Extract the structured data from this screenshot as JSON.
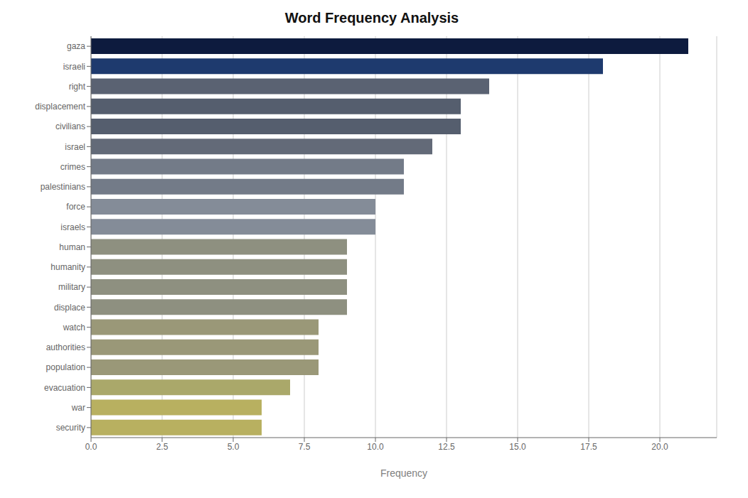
{
  "chart_data": {
    "type": "bar",
    "title": "Word Frequency Analysis",
    "xlabel": "Frequency",
    "orientation": "horizontal",
    "categories": [
      "gaza",
      "israeli",
      "right",
      "displacement",
      "civilians",
      "israel",
      "crimes",
      "palestinians",
      "force",
      "israels",
      "human",
      "humanity",
      "military",
      "displace",
      "watch",
      "authorities",
      "population",
      "evacuation",
      "war",
      "security"
    ],
    "values": [
      21,
      18,
      14,
      13,
      13,
      12,
      11,
      11,
      10,
      10,
      9,
      9,
      9,
      9,
      8,
      8,
      8,
      7,
      6,
      6
    ],
    "colors": [
      "#0d1b3e",
      "#1e3a6e",
      "#5a6272",
      "#555e6e",
      "#555e6e",
      "#636a78",
      "#737b88",
      "#737b88",
      "#848c98",
      "#848c98",
      "#8e9080",
      "#8e9080",
      "#8e9080",
      "#8e9080",
      "#9a9878",
      "#9a9878",
      "#9a9878",
      "#aaa86a",
      "#b8b060",
      "#b8b060"
    ],
    "xlim": [
      0,
      22
    ],
    "xticks": [
      {
        "value": 0,
        "label": "0.0"
      },
      2.5,
      {
        "value": 5,
        "label": "5.0"
      },
      7.5,
      {
        "value": 10,
        "label": "10.0"
      },
      12.5,
      {
        "value": 15,
        "label": "15.0"
      },
      17.5,
      {
        "value": 20,
        "label": "20.0"
      }
    ],
    "grid": true
  }
}
